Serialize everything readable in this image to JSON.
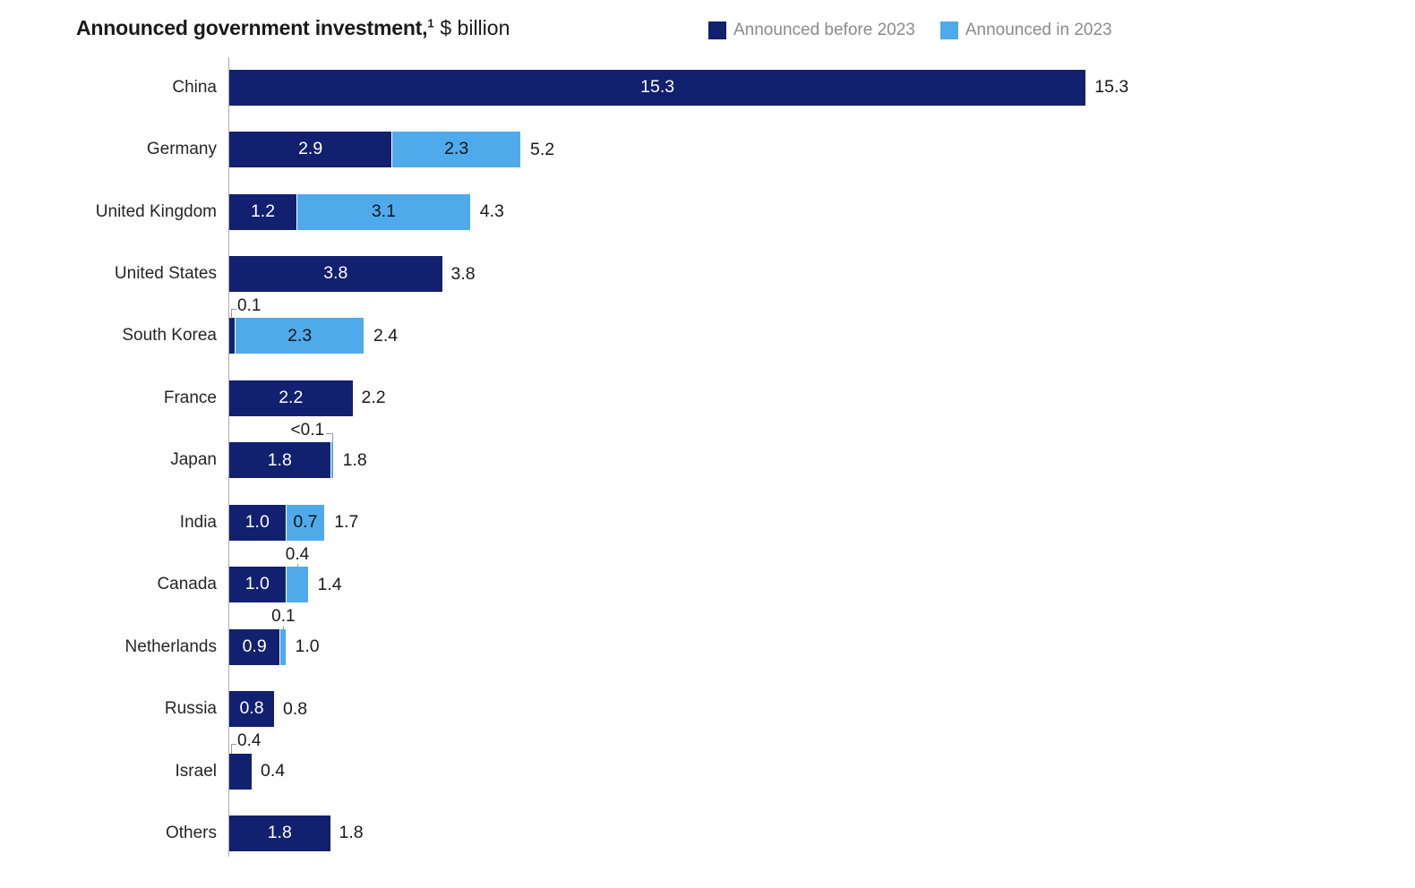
{
  "header": {
    "title_bold": "Announced government investment,",
    "title_footnote": "1",
    "title_suffix": "$ billion"
  },
  "legend": {
    "items": [
      {
        "label": "Announced before 2023",
        "series": "before"
      },
      {
        "label": "Announced in 2023",
        "series": "in2023"
      }
    ]
  },
  "colors": {
    "before": "#122070",
    "in2023": "#4FAAEB",
    "inside_label_on_before": "#FFFFFF",
    "inside_label_on_in2023": "#141414",
    "axis": "#ADADAD",
    "legend_text": "#8B8B8B",
    "text": "#1A1A1A",
    "callout_line": "#999999"
  },
  "chart_data": {
    "type": "bar",
    "orientation": "horizontal",
    "title": "Announced government investment, $ billion",
    "unit": "$ billion",
    "legend_position": "top-right",
    "grid": false,
    "xlim": [
      0,
      15.3
    ],
    "categories": [
      "China",
      "Germany",
      "United Kingdom",
      "United States",
      "South Korea",
      "France",
      "Japan",
      "India",
      "Canada",
      "Netherlands",
      "Russia",
      "Israel",
      "Others"
    ],
    "series": [
      {
        "name": "Announced before 2023",
        "values": [
          15.3,
          2.9,
          1.2,
          3.8,
          0.1,
          2.2,
          1.8,
          1.0,
          1.0,
          0.9,
          0.8,
          0.4,
          1.8
        ]
      },
      {
        "name": "Announced in 2023",
        "values": [
          null,
          2.3,
          3.1,
          null,
          2.3,
          null,
          0.05,
          0.7,
          0.4,
          0.1,
          null,
          null,
          null
        ]
      }
    ],
    "rows": [
      {
        "category": "China",
        "segments": [
          {
            "series": "before",
            "value": 15.3,
            "label": "15.3",
            "label_pos": "inside"
          }
        ],
        "total": "15.3"
      },
      {
        "category": "Germany",
        "segments": [
          {
            "series": "before",
            "value": 2.9,
            "label": "2.9",
            "label_pos": "inside"
          },
          {
            "series": "in2023",
            "value": 2.3,
            "label": "2.3",
            "label_pos": "inside"
          }
        ],
        "total": "5.2"
      },
      {
        "category": "United Kingdom",
        "segments": [
          {
            "series": "before",
            "value": 1.2,
            "label": "1.2",
            "label_pos": "inside"
          },
          {
            "series": "in2023",
            "value": 3.1,
            "label": "3.1",
            "label_pos": "inside"
          }
        ],
        "total": "4.3"
      },
      {
        "category": "United States",
        "segments": [
          {
            "series": "before",
            "value": 3.8,
            "label": "3.8",
            "label_pos": "inside"
          }
        ],
        "total": "3.8"
      },
      {
        "category": "South Korea",
        "segments": [
          {
            "series": "before",
            "value": 0.1,
            "label": "0.1",
            "label_pos": "callout-left"
          },
          {
            "series": "in2023",
            "value": 2.3,
            "label": "2.3",
            "label_pos": "inside"
          }
        ],
        "total": "2.4"
      },
      {
        "category": "France",
        "segments": [
          {
            "series": "before",
            "value": 2.2,
            "label": "2.2",
            "label_pos": "inside"
          }
        ],
        "total": "2.2"
      },
      {
        "category": "Japan",
        "segments": [
          {
            "series": "before",
            "value": 1.8,
            "label": "1.8",
            "label_pos": "inside"
          },
          {
            "series": "in2023",
            "value": 0.05,
            "label": "<0.1",
            "label_pos": "callout-right"
          }
        ],
        "total": "1.8"
      },
      {
        "category": "India",
        "segments": [
          {
            "series": "before",
            "value": 1.0,
            "label": "1.0",
            "label_pos": "inside"
          },
          {
            "series": "in2023",
            "value": 0.7,
            "label": "0.7",
            "label_pos": "inside"
          }
        ],
        "total": "1.7"
      },
      {
        "category": "Canada",
        "segments": [
          {
            "series": "before",
            "value": 1.0,
            "label": "1.0",
            "label_pos": "inside"
          },
          {
            "series": "in2023",
            "value": 0.4,
            "label": "0.4",
            "label_pos": "callout-top"
          }
        ],
        "total": "1.4"
      },
      {
        "category": "Netherlands",
        "segments": [
          {
            "series": "before",
            "value": 0.9,
            "label": "0.9",
            "label_pos": "inside"
          },
          {
            "series": "in2023",
            "value": 0.1,
            "label": "0.1",
            "label_pos": "callout-top"
          }
        ],
        "total": "1.0"
      },
      {
        "category": "Russia",
        "segments": [
          {
            "series": "before",
            "value": 0.8,
            "label": "0.8",
            "label_pos": "inside"
          }
        ],
        "total": "0.8"
      },
      {
        "category": "Israel",
        "segments": [
          {
            "series": "before",
            "value": 0.4,
            "label": "0.4",
            "label_pos": "callout-left"
          }
        ],
        "total": "0.4"
      },
      {
        "category": "Others",
        "segments": [
          {
            "series": "before",
            "value": 1.8,
            "label": "1.8",
            "label_pos": "inside"
          }
        ],
        "total": "1.8"
      }
    ]
  }
}
